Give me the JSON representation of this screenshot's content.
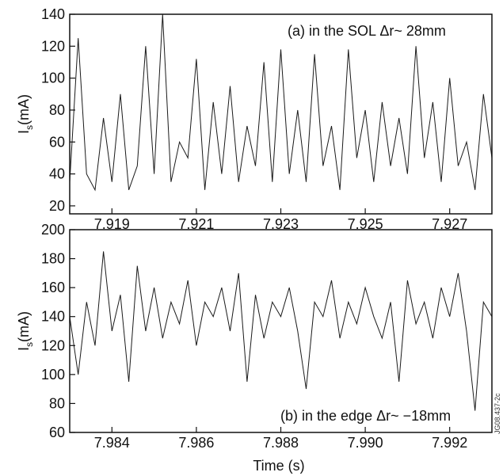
{
  "figure_id": "JG08.437-2c",
  "chart_data": [
    {
      "type": "line",
      "panel": "a",
      "annotation": "(a) in the SOL Δr~ 28mm",
      "ylabel": "I",
      "ylabel_sub": "s",
      "ylabel_unit": "(mA)",
      "xlabel": "",
      "xlim": [
        7.918,
        7.928
      ],
      "ylim": [
        15,
        140
      ],
      "xticks": [
        7.919,
        7.921,
        7.923,
        7.925,
        7.927
      ],
      "xtick_labels": [
        "7.919",
        "7.921",
        "7.923",
        "7.925",
        "7.927"
      ],
      "yticks": [
        20,
        40,
        60,
        80,
        100,
        120,
        140
      ],
      "ytick_labels": [
        "20",
        "40",
        "60",
        "80",
        "100",
        "120",
        "140"
      ],
      "series": [
        {
          "x": [
            7.918,
            7.9182,
            7.9184,
            7.9186,
            7.9188,
            7.919,
            7.9192,
            7.9194,
            7.9196,
            7.9198,
            7.92,
            7.9202,
            7.9204,
            7.9206,
            7.9208,
            7.921,
            7.9212,
            7.9214,
            7.9216,
            7.9218,
            7.922,
            7.9222,
            7.9224,
            7.9226,
            7.9228,
            7.923,
            7.9232,
            7.9234,
            7.9236,
            7.9238,
            7.924,
            7.9242,
            7.9244,
            7.9246,
            7.9248,
            7.925,
            7.9252,
            7.9254,
            7.9256,
            7.9258,
            7.926,
            7.9262,
            7.9264,
            7.9266,
            7.9268,
            7.927,
            7.9272,
            7.9274,
            7.9276,
            7.9278,
            7.928
          ],
          "y": [
            35,
            125,
            40,
            30,
            75,
            35,
            90,
            30,
            45,
            120,
            40,
            140,
            35,
            60,
            50,
            112,
            30,
            85,
            40,
            95,
            35,
            70,
            45,
            110,
            35,
            118,
            40,
            80,
            35,
            115,
            45,
            70,
            30,
            118,
            50,
            80,
            35,
            85,
            45,
            75,
            40,
            120,
            50,
            85,
            35,
            100,
            45,
            60,
            30,
            90,
            50
          ]
        }
      ]
    },
    {
      "type": "line",
      "panel": "b",
      "annotation": "(b) in the edge Δr~ −18mm",
      "ylabel": "I",
      "ylabel_sub": "s",
      "ylabel_unit": "(mA)",
      "xlabel": "Time (s)",
      "xlim": [
        7.983,
        7.993
      ],
      "ylim": [
        60,
        200
      ],
      "xticks": [
        7.984,
        7.986,
        7.988,
        7.99,
        7.992
      ],
      "xtick_labels": [
        "7.984",
        "7.986",
        "7.988",
        "7.990",
        "7.992"
      ],
      "yticks": [
        60,
        80,
        100,
        120,
        140,
        160,
        180,
        200
      ],
      "ytick_labels": [
        "60",
        "80",
        "100",
        "120",
        "140",
        "160",
        "180",
        "200"
      ],
      "series": [
        {
          "x": [
            7.983,
            7.9832,
            7.9834,
            7.9836,
            7.9838,
            7.984,
            7.9842,
            7.9844,
            7.9846,
            7.9848,
            7.985,
            7.9852,
            7.9854,
            7.9856,
            7.9858,
            7.986,
            7.9862,
            7.9864,
            7.9866,
            7.9868,
            7.987,
            7.9872,
            7.9874,
            7.9876,
            7.9878,
            7.988,
            7.9882,
            7.9884,
            7.9886,
            7.9888,
            7.989,
            7.9892,
            7.9894,
            7.9896,
            7.9898,
            7.99,
            7.9902,
            7.9904,
            7.9906,
            7.9908,
            7.991,
            7.9912,
            7.9914,
            7.9916,
            7.9918,
            7.992,
            7.9922,
            7.9924,
            7.9926,
            7.9928,
            7.993
          ],
          "y": [
            140,
            100,
            150,
            120,
            185,
            130,
            155,
            95,
            175,
            130,
            160,
            125,
            150,
            135,
            165,
            120,
            150,
            140,
            160,
            130,
            170,
            95,
            155,
            125,
            150,
            140,
            160,
            130,
            90,
            150,
            140,
            165,
            125,
            150,
            135,
            160,
            140,
            125,
            150,
            95,
            165,
            135,
            150,
            125,
            160,
            140,
            170,
            130,
            75,
            150,
            140
          ]
        }
      ]
    }
  ]
}
